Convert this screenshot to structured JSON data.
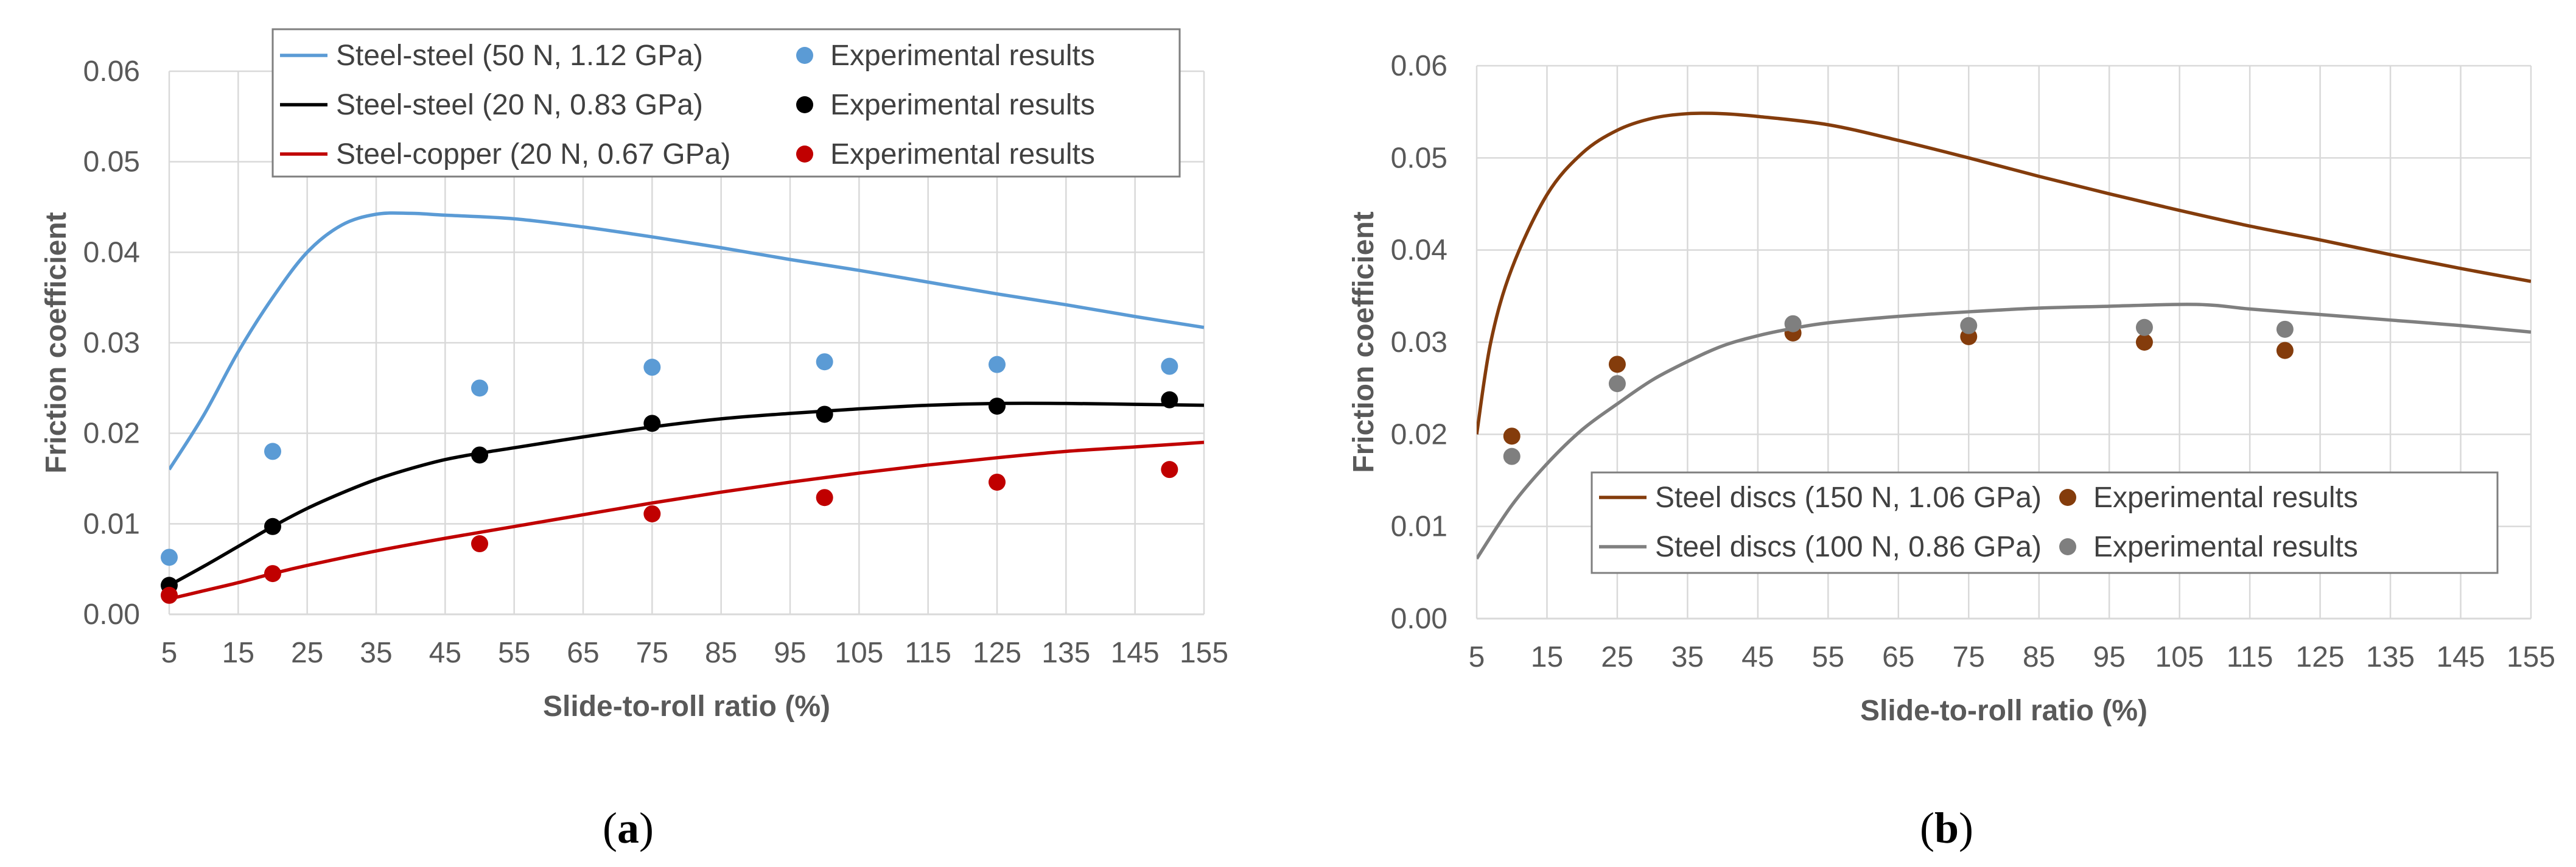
{
  "chart_data": [
    {
      "type": "line",
      "panel_label": "(a)",
      "xlabel": "Slide-to-roll ratio (%)",
      "ylabel": "Friction coefficient",
      "xlim": [
        5,
        155
      ],
      "ylim": [
        0,
        0.06
      ],
      "xticks": [
        "5",
        "15",
        "25",
        "35",
        "45",
        "55",
        "65",
        "75",
        "85",
        "95",
        "105",
        "115",
        "125",
        "135",
        "145",
        "155"
      ],
      "yticks": [
        "0.00",
        "0.01",
        "0.02",
        "0.03",
        "0.04",
        "0.05",
        "0.06"
      ],
      "grid": true,
      "legend_position": "top",
      "series": [
        {
          "name": "Steel-steel (50 N, 1.12 GPa)",
          "kind": "line",
          "color": "#5b9bd5",
          "x": [
            5,
            10,
            15,
            20,
            25,
            30,
            35,
            40,
            45,
            55,
            65,
            75,
            85,
            95,
            105,
            115,
            125,
            135,
            145,
            155
          ],
          "y": [
            0.016,
            0.022,
            0.029,
            0.035,
            0.04,
            0.043,
            0.0442,
            0.0443,
            0.0441,
            0.0437,
            0.0428,
            0.0417,
            0.0405,
            0.0392,
            0.038,
            0.0367,
            0.0354,
            0.0342,
            0.0329,
            0.0317
          ]
        },
        {
          "name": "Experimental results",
          "kind": "scatter",
          "color": "#5b9bd5",
          "x": [
            5,
            20,
            50,
            75,
            100,
            125,
            150
          ],
          "y": [
            0.0063,
            0.018,
            0.025,
            0.0273,
            0.0279,
            0.0276,
            0.0274
          ]
        },
        {
          "name": "Steel-steel (20 N, 0.83 GPa)",
          "kind": "line",
          "color": "#000000",
          "x": [
            5,
            10,
            15,
            20,
            25,
            30,
            35,
            40,
            45,
            50,
            55,
            65,
            75,
            85,
            95,
            105,
            115,
            125,
            135,
            145,
            155
          ],
          "y": [
            0.0032,
            0.0053,
            0.0075,
            0.0097,
            0.0117,
            0.0134,
            0.0149,
            0.0161,
            0.0171,
            0.0178,
            0.0184,
            0.0196,
            0.0207,
            0.0216,
            0.0222,
            0.0227,
            0.0231,
            0.0233,
            0.0233,
            0.0232,
            0.0231
          ]
        },
        {
          "name": "Experimental results",
          "kind": "scatter",
          "color": "#000000",
          "x": [
            5,
            20,
            50,
            75,
            100,
            125,
            150
          ],
          "y": [
            0.0032,
            0.0097,
            0.0176,
            0.0211,
            0.0221,
            0.023,
            0.0237
          ]
        },
        {
          "name": "Steel-copper (20 N, 0.67 GPa)",
          "kind": "line",
          "color": "#c00000",
          "x": [
            5,
            10,
            15,
            20,
            25,
            35,
            45,
            55,
            65,
            75,
            85,
            95,
            105,
            115,
            125,
            135,
            145,
            155
          ],
          "y": [
            0.0017,
            0.0026,
            0.0035,
            0.0045,
            0.0054,
            0.007,
            0.0084,
            0.0097,
            0.011,
            0.0123,
            0.0135,
            0.0146,
            0.0156,
            0.0165,
            0.0173,
            0.018,
            0.0185,
            0.019
          ]
        },
        {
          "name": "Experimental results",
          "kind": "scatter",
          "color": "#c00000",
          "x": [
            5,
            20,
            50,
            75,
            100,
            125,
            150
          ],
          "y": [
            0.0021,
            0.0045,
            0.0078,
            0.0111,
            0.0129,
            0.0146,
            0.016
          ]
        }
      ]
    },
    {
      "type": "line",
      "panel_label": "(b)",
      "xlabel": "Slide-to-roll ratio (%)",
      "ylabel": "Friction coefficient",
      "xlim": [
        5,
        155
      ],
      "ylim": [
        0,
        0.06
      ],
      "xticks": [
        "5",
        "15",
        "25",
        "35",
        "45",
        "55",
        "65",
        "75",
        "85",
        "95",
        "105",
        "115",
        "125",
        "135",
        "145",
        "155"
      ],
      "yticks": [
        "0.00",
        "0.01",
        "0.02",
        "0.03",
        "0.04",
        "0.05",
        "0.06"
      ],
      "grid": true,
      "legend_position": "bottom-center",
      "series": [
        {
          "name": "Steel discs (150 N, 1.06 GPa)",
          "kind": "line",
          "color": "#843c0c",
          "x": [
            5,
            7,
            10,
            15,
            20,
            25,
            30,
            35,
            40,
            45,
            55,
            65,
            75,
            85,
            95,
            105,
            115,
            125,
            135,
            145,
            155
          ],
          "y": [
            0.02,
            0.03,
            0.038,
            0.046,
            0.0505,
            0.053,
            0.0543,
            0.0548,
            0.0548,
            0.0545,
            0.0536,
            0.0519,
            0.05,
            0.048,
            0.0461,
            0.0443,
            0.0426,
            0.0411,
            0.0395,
            0.038,
            0.0366
          ]
        },
        {
          "name": "Experimental results",
          "kind": "scatter",
          "color": "#843c0c",
          "x": [
            10,
            25,
            50,
            75,
            100,
            120
          ],
          "y": [
            0.0198,
            0.0276,
            0.031,
            0.0306,
            0.03,
            0.0291
          ]
        },
        {
          "name": "Steel discs (100 N, 0.86 GPa)",
          "kind": "line",
          "color": "#7f7f7f",
          "x": [
            5,
            10,
            15,
            20,
            25,
            30,
            35,
            40,
            45,
            50,
            55,
            65,
            75,
            85,
            95,
            105,
            110,
            115,
            125,
            135,
            145,
            155
          ],
          "y": [
            0.0065,
            0.0123,
            0.0168,
            0.0205,
            0.0233,
            0.0259,
            0.0279,
            0.0296,
            0.0307,
            0.0315,
            0.0321,
            0.0328,
            0.0333,
            0.0337,
            0.0339,
            0.0341,
            0.034,
            0.0336,
            0.033,
            0.0324,
            0.0318,
            0.0311
          ]
        },
        {
          "name": "Experimental results",
          "kind": "scatter",
          "color": "#7f7f7f",
          "x": [
            10,
            25,
            50,
            75,
            100,
            120
          ],
          "y": [
            0.0176,
            0.0255,
            0.032,
            0.0318,
            0.0316,
            0.0314
          ]
        }
      ]
    }
  ]
}
